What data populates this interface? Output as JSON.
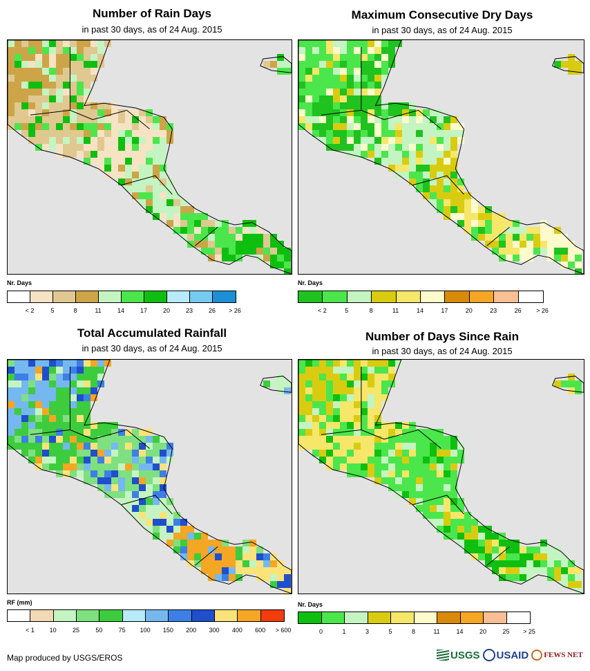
{
  "panels": [
    {
      "title": "Number of Rain Days",
      "subtitle": "in past 30 days, as of 24 Aug. 2015",
      "legend_unit": "Nr. Days",
      "legend_colors": [
        "#ffffff",
        "#f6e3c4",
        "#e0c891",
        "#cda548",
        "#c4f4c2",
        "#4be64b",
        "#0fbf0f",
        "#b8eaf9",
        "#75cbf0",
        "#1d8fd6"
      ],
      "legend_ticks": [
        "< 2",
        "5",
        "8",
        "11",
        "14",
        "17",
        "20",
        "23",
        "26",
        "> 26"
      ],
      "map_palette": [
        "#cda548",
        "#e0c891",
        "#f6e3c4",
        "#c4f4c2",
        "#4be64b",
        "#0fbf0f"
      ]
    },
    {
      "title": "Maximum Consecutive Dry Days",
      "subtitle": "in past 30 days, as of 24 Aug. 2015",
      "legend_unit": "Nr. Days",
      "legend_colors": [
        "#1fc21f",
        "#4be64b",
        "#c4f4c2",
        "#d9cc10",
        "#f6e66a",
        "#fdfbcc",
        "#d98a0a",
        "#f5a623",
        "#f7bf93",
        "#ffffff"
      ],
      "legend_ticks": [
        "< 2",
        "5",
        "8",
        "11",
        "14",
        "17",
        "20",
        "23",
        "26",
        "> 26"
      ],
      "map_palette": [
        "#4be64b",
        "#4be64b",
        "#1fc21f",
        "#c4f4c2",
        "#d9cc10",
        "#f6e66a",
        "#fdfbcc"
      ]
    },
    {
      "title": "Total Accumulated Rainfall",
      "subtitle": "in past 30 days, as of 24 Aug. 2015",
      "legend_unit": "RF (mm)",
      "legend_colors": [
        "#ffffff",
        "#f0d9b3",
        "#c4f4c2",
        "#7fe07f",
        "#3dcc3d",
        "#b8eaf9",
        "#75b8f0",
        "#3d7fe6",
        "#1f4fcc",
        "#fbe37a",
        "#f5a623",
        "#f23c0a"
      ],
      "legend_ticks": [
        "< 1",
        "10",
        "25",
        "50",
        "75",
        "100",
        "150",
        "200",
        "300",
        "400",
        "600",
        "> 600"
      ],
      "map_palette": [
        "#3d7fe6",
        "#1f4fcc",
        "#75b8f0",
        "#3dcc3d",
        "#7fe07f",
        "#c4f4c2",
        "#f5a623",
        "#fbe37a"
      ]
    },
    {
      "title": "Number of Days Since Rain",
      "subtitle": "in past 30 days, as of 24 Aug. 2015",
      "legend_unit": "Nr. Days",
      "legend_colors": [
        "#0fbf0f",
        "#4be64b",
        "#c4f4c2",
        "#d9cc10",
        "#f6e66a",
        "#fdfbcc",
        "#d98a0a",
        "#f5a623",
        "#f7bf93",
        "#ffffff"
      ],
      "legend_ticks": [
        "0",
        "1",
        "3",
        "5",
        "8",
        "11",
        "14",
        "20",
        "25",
        "> 25"
      ],
      "map_palette": [
        "#4be64b",
        "#0fbf0f",
        "#c4f4c2",
        "#d9cc10",
        "#f6e66a",
        "#4be64b"
      ]
    }
  ],
  "ocean_color": "#e3e3e3",
  "credit": "Map produced by USGS/EROS",
  "logos": {
    "usgs": "USGS",
    "usaid": "USAID",
    "fewsnet": "FEWS NET"
  }
}
